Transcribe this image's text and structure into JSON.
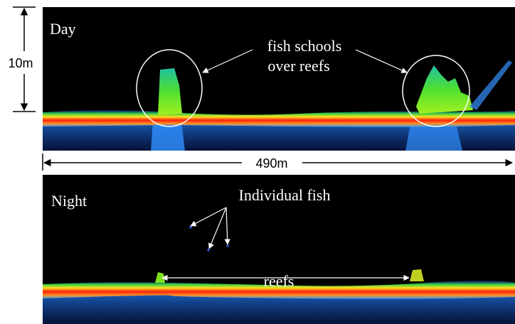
{
  "scale": {
    "vertical": "10m",
    "horizontal": "490m"
  },
  "day": {
    "label": "Day",
    "annotation": [
      "fish schools",
      "over reefs"
    ]
  },
  "night": {
    "label": "Night",
    "annotation_fish": "Individual fish",
    "annotation_reefs": "reefs"
  }
}
